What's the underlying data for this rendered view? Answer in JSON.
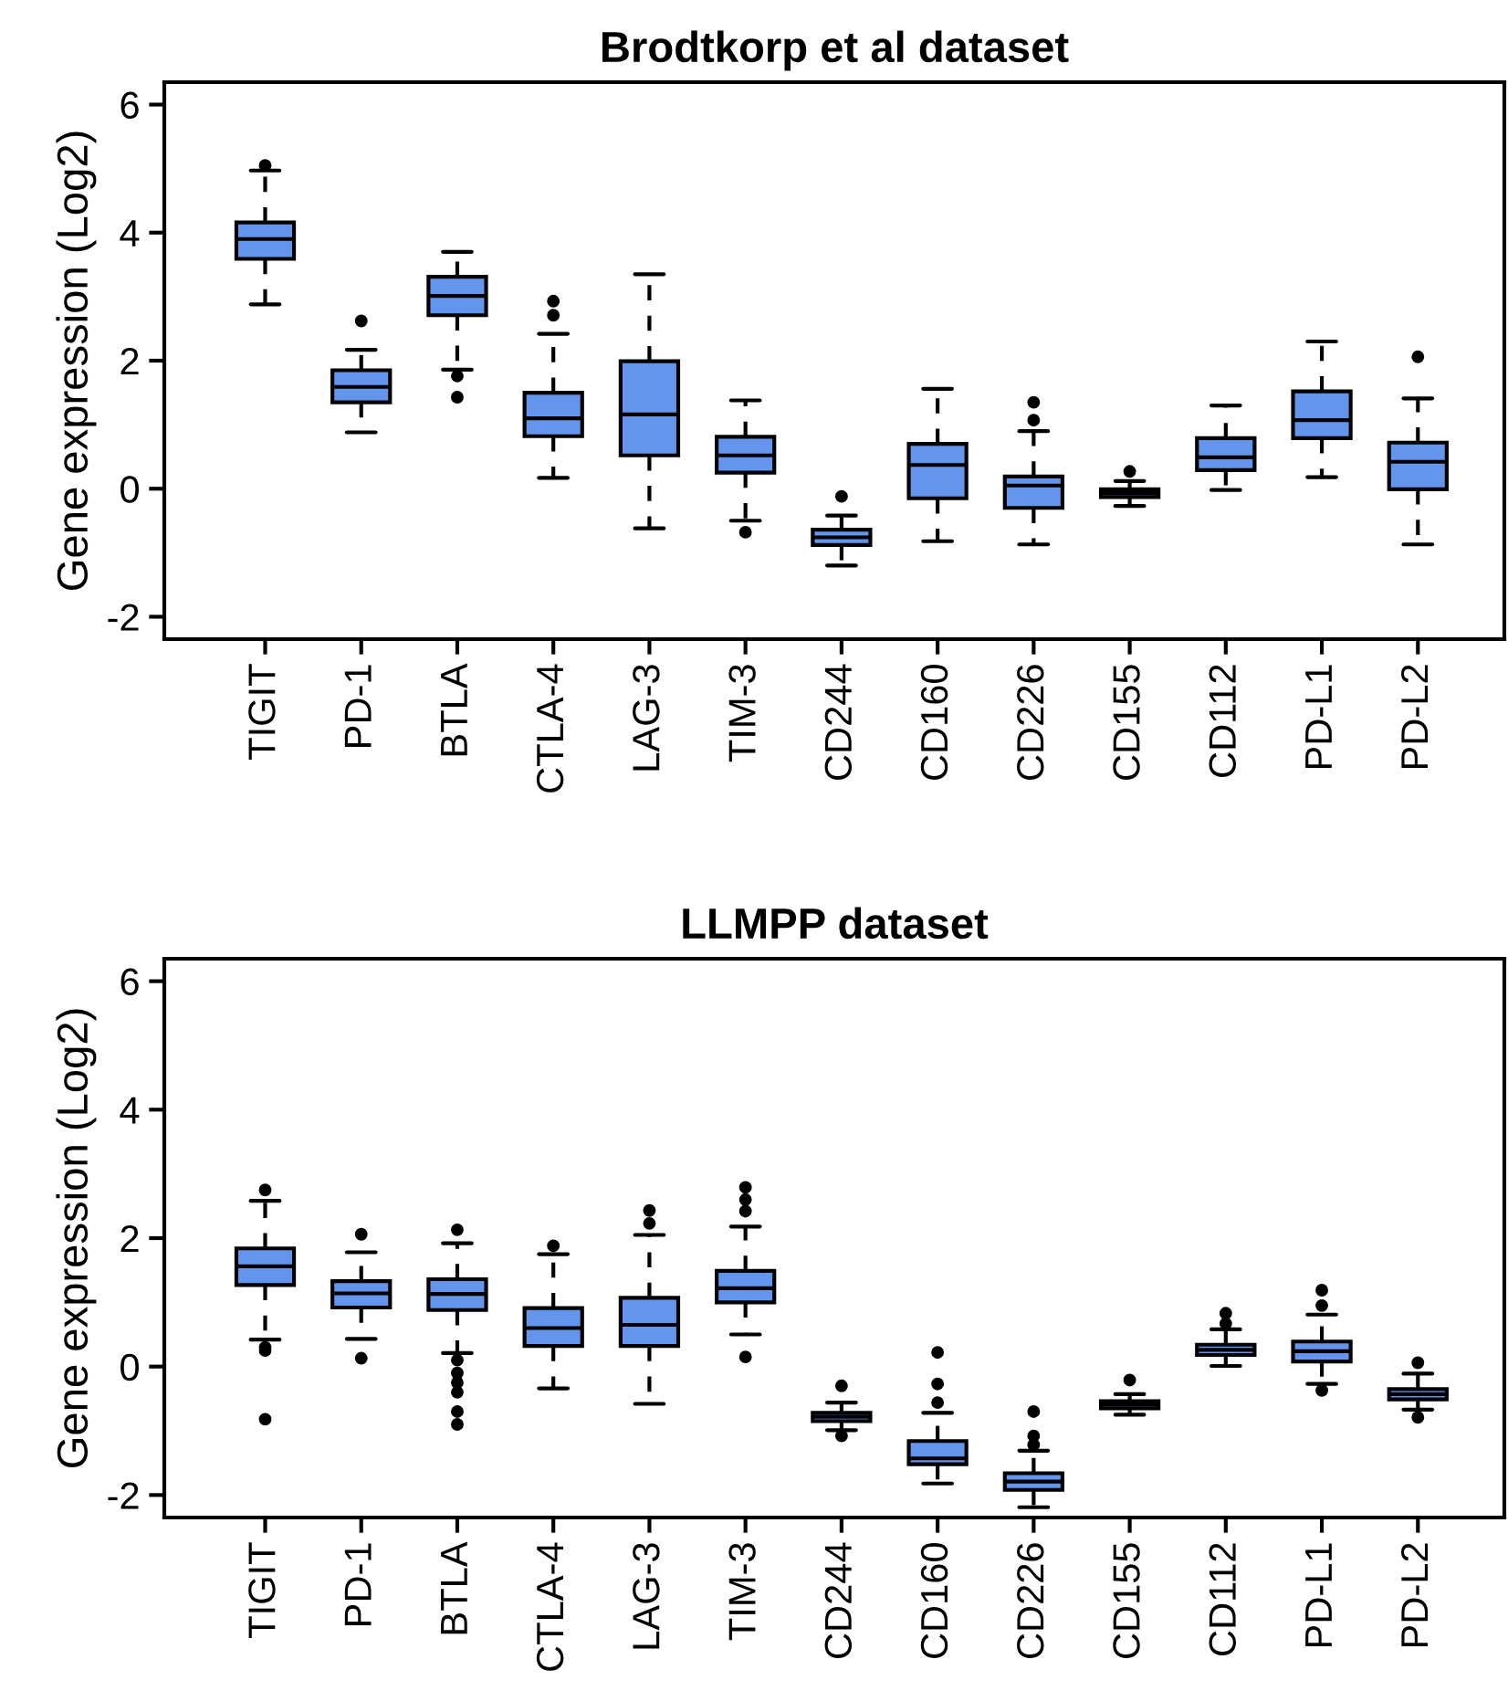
{
  "chart_data": [
    {
      "type": "box",
      "title": "Brodtkorp et al dataset",
      "ylabel": "Gene expression (Log2)",
      "color": "#6495ed",
      "grid": false,
      "legend": false,
      "ylim": [
        -2.35,
        6.35
      ],
      "yticks": [
        -2,
        0,
        2,
        4,
        6
      ],
      "line_style": "dashed",
      "categories": [
        "TIGIT",
        "PD-1",
        "BTLA",
        "CTLA-4",
        "LAG-3",
        "TIM-3",
        "CD244",
        "CD160",
        "CD226",
        "CD155",
        "CD112",
        "PD-L1",
        "PD-L2"
      ],
      "boxes": [
        {
          "low": 2.88,
          "q1": 3.59,
          "median": 3.9,
          "q3": 4.16,
          "high": 4.97,
          "outliers": [
            5.05
          ]
        },
        {
          "low": 0.88,
          "q1": 1.35,
          "median": 1.59,
          "q3": 1.85,
          "high": 2.17,
          "outliers": [
            2.62
          ]
        },
        {
          "low": 1.86,
          "q1": 2.71,
          "median": 3.01,
          "q3": 3.31,
          "high": 3.7,
          "outliers": [
            1.76,
            1.43
          ]
        },
        {
          "low": 0.17,
          "q1": 0.82,
          "median": 1.1,
          "q3": 1.5,
          "high": 2.42,
          "outliers": [
            2.93,
            2.71
          ]
        },
        {
          "low": -0.62,
          "q1": 0.52,
          "median": 1.16,
          "q3": 1.99,
          "high": 3.35
        },
        {
          "low": -0.5,
          "q1": 0.25,
          "median": 0.52,
          "q3": 0.81,
          "high": 1.38,
          "outliers": [
            -0.68
          ]
        },
        {
          "low": -1.2,
          "q1": -0.88,
          "median": -0.76,
          "q3": -0.64,
          "high": -0.42,
          "outliers": [
            -0.12
          ]
        },
        {
          "low": -0.82,
          "q1": -0.15,
          "median": 0.37,
          "q3": 0.7,
          "high": 1.56
        },
        {
          "low": -0.87,
          "q1": -0.3,
          "median": 0.05,
          "q3": 0.19,
          "high": 0.9,
          "outliers": [
            1.35,
            1.07
          ]
        },
        {
          "low": -0.27,
          "q1": -0.13,
          "median": -0.07,
          "q3": -0.01,
          "high": 0.12,
          "outliers": [
            0.27
          ]
        },
        {
          "low": -0.02,
          "q1": 0.29,
          "median": 0.49,
          "q3": 0.79,
          "high": 1.3
        },
        {
          "low": 0.18,
          "q1": 0.79,
          "median": 1.07,
          "q3": 1.52,
          "high": 2.3
        },
        {
          "low": -0.87,
          "q1": -0.01,
          "median": 0.42,
          "q3": 0.72,
          "high": 1.41,
          "outliers": [
            2.06
          ]
        }
      ]
    },
    {
      "type": "box",
      "title": "LLMPP dataset",
      "ylabel": "Gene expression (Log2)",
      "color": "#6495ed",
      "grid": false,
      "legend": false,
      "ylim": [
        -2.35,
        6.35
      ],
      "yticks": [
        -2,
        0,
        2,
        4,
        6
      ],
      "line_style": "dashed",
      "categories": [
        "TIGIT",
        "PD-1",
        "BTLA",
        "CTLA-4",
        "LAG-3",
        "TIM-3",
        "CD244",
        "CD160",
        "CD226",
        "CD155",
        "CD112",
        "PD-L1",
        "PD-L2"
      ],
      "boxes": [
        {
          "low": 0.42,
          "q1": 1.27,
          "median": 1.56,
          "q3": 1.84,
          "high": 2.58,
          "outliers": [
            2.75,
            0.3,
            0.25,
            -0.82
          ]
        },
        {
          "low": 0.43,
          "q1": 0.92,
          "median": 1.14,
          "q3": 1.33,
          "high": 1.78,
          "outliers": [
            2.06,
            0.13
          ]
        },
        {
          "low": 0.21,
          "q1": 0.88,
          "median": 1.13,
          "q3": 1.36,
          "high": 1.92,
          "outliers": [
            2.13,
            0.1,
            -0.1,
            -0.25,
            -0.4,
            -0.7,
            -0.9
          ]
        },
        {
          "low": -0.34,
          "q1": 0.32,
          "median": 0.6,
          "q3": 0.91,
          "high": 1.75,
          "outliers": [
            1.88
          ]
        },
        {
          "low": -0.58,
          "q1": 0.32,
          "median": 0.65,
          "q3": 1.07,
          "high": 2.05,
          "outliers": [
            2.43,
            2.23
          ]
        },
        {
          "low": 0.5,
          "q1": 1.0,
          "median": 1.22,
          "q3": 1.49,
          "high": 2.18,
          "outliers": [
            2.79,
            2.6,
            2.42,
            0.15
          ]
        },
        {
          "low": -0.99,
          "q1": -0.85,
          "median": -0.78,
          "q3": -0.72,
          "high": -0.56,
          "outliers": [
            -0.3,
            -1.08
          ]
        },
        {
          "low": -1.82,
          "q1": -1.52,
          "median": -1.43,
          "q3": -1.16,
          "high": -0.72,
          "outliers": [
            0.22,
            -0.27,
            -0.56
          ]
        },
        {
          "low": -2.19,
          "q1": -1.92,
          "median": -1.79,
          "q3": -1.66,
          "high": -1.31,
          "outliers": [
            -0.7,
            -1.08,
            -1.22
          ]
        },
        {
          "low": -0.75,
          "q1": -0.65,
          "median": -0.59,
          "q3": -0.54,
          "high": -0.43,
          "outliers": [
            -0.21
          ]
        },
        {
          "low": 0.01,
          "q1": 0.18,
          "median": 0.26,
          "q3": 0.34,
          "high": 0.58,
          "outliers": [
            0.83,
            0.67
          ]
        },
        {
          "low": -0.27,
          "q1": 0.08,
          "median": 0.24,
          "q3": 0.39,
          "high": 0.81,
          "outliers": [
            1.19,
            0.95,
            -0.37
          ]
        },
        {
          "low": -0.67,
          "q1": -0.51,
          "median": -0.43,
          "q3": -0.35,
          "high": -0.11,
          "outliers": [
            0.06,
            -0.79
          ]
        }
      ]
    }
  ]
}
